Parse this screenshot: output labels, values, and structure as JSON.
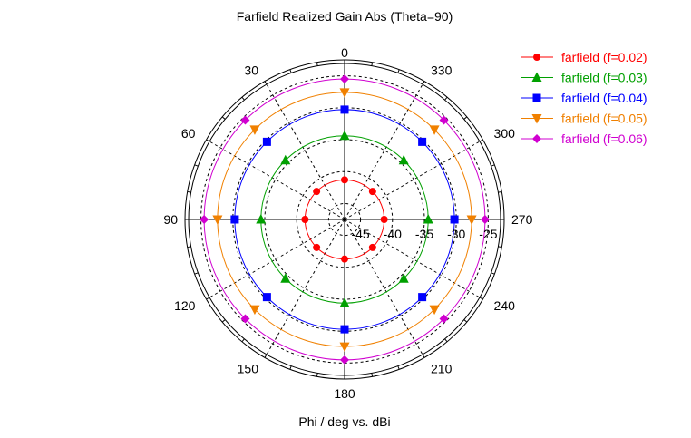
{
  "chart_data": {
    "type": "polar-line",
    "title": "Farfield Realized Gain Abs (Theta=90)",
    "xlabel": "Phi / deg vs. dBi",
    "angle_ticks": [
      "0",
      "330",
      "300",
      "270",
      "240",
      "210",
      "180",
      "150",
      "120",
      "90",
      "60",
      "30"
    ],
    "radial_ticks": [
      "-45",
      "-40",
      "-35",
      "-30",
      "-25"
    ],
    "radial_range": [
      -47.5,
      -22.5
    ],
    "angle_direction": "counterclockwise",
    "angle_zero": "top",
    "grid": true,
    "legend_position": "top-right",
    "marker_phis": [
      0,
      45,
      90,
      135,
      180,
      225,
      270,
      315
    ],
    "series": [
      {
        "name": "farfield (f=0.02)",
        "color": "#ff0000",
        "marker": "circle",
        "gain_dBi": -41.3
      },
      {
        "name": "farfield (f=0.03)",
        "color": "#00a000",
        "marker": "triangle-up",
        "gain_dBi": -34.4
      },
      {
        "name": "farfield (f=0.04)",
        "color": "#0000ff",
        "marker": "square",
        "gain_dBi": -30.3
      },
      {
        "name": "farfield (f=0.05)",
        "color": "#f08000",
        "marker": "triangle-down",
        "gain_dBi": -27.6
      },
      {
        "name": "farfield (f=0.06)",
        "color": "#d000d0",
        "marker": "diamond",
        "gain_dBi": -25.5
      }
    ]
  }
}
